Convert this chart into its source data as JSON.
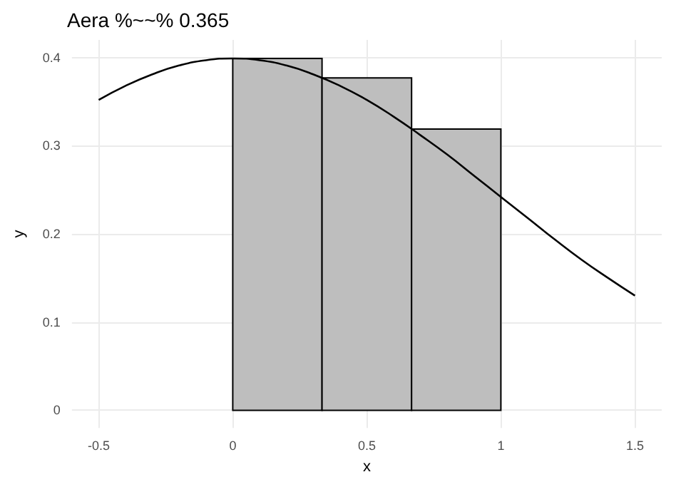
{
  "chart_data": {
    "type": "histogram",
    "title": "Aera %~~% 0.365",
    "xlabel": "x",
    "ylabel": "y",
    "xlim": [
      -0.6,
      1.6
    ],
    "xticks": [
      -0.5,
      0,
      0.5,
      1,
      1.5
    ],
    "ylim": [
      -0.02,
      0.42
    ],
    "yticks": [
      0,
      0.1,
      0.2,
      0.3,
      0.4
    ],
    "grid": true,
    "marker": "none",
    "series": [
      {
        "color": "#bebebe",
        "bins": [
          0,
          0.333,
          0.667,
          1
        ],
        "values": [
          0.399,
          0.377,
          0.319
        ]
      },
      {
        "type": "line",
        "color": "#000000",
        "x": [
          -0.5,
          -0.4,
          -0.3,
          -0.2,
          -0.1,
          0,
          0.1,
          0.2,
          0.3,
          0.4,
          0.5,
          0.6,
          0.7,
          0.8,
          0.9,
          1.0,
          1.1,
          1.2,
          1.3,
          1.4,
          1.5
        ],
        "values": [
          0.352,
          0.368,
          0.381,
          0.391,
          0.397,
          0.399,
          0.397,
          0.391,
          0.381,
          0.368,
          0.352,
          0.333,
          0.312,
          0.29,
          0.266,
          0.242,
          0.218,
          0.194,
          0.171,
          0.15,
          0.13
        ]
      }
    ]
  }
}
